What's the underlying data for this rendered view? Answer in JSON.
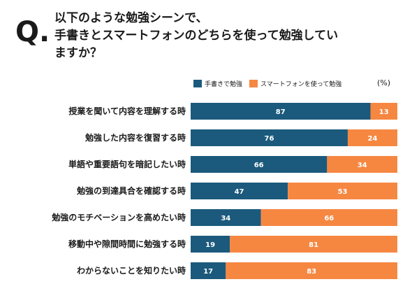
{
  "question": {
    "mark": "Q.",
    "lines": [
      "以下のような勉強シーンで、",
      "手書きとスマートフォンのどちらを使って勉強してい",
      "ますか？"
    ]
  },
  "legend": {
    "handwriting": "手書きで勉強",
    "smartphone": "スマートフォンを使って勉強"
  },
  "unit": "(%)",
  "colors": {
    "handwriting": "#1b5a7c",
    "smartphone": "#f68741"
  },
  "chart_data": {
    "type": "bar",
    "orientation": "horizontal-stacked",
    "xlim": [
      0,
      100
    ],
    "categories": [
      "授業を聞いて内容を理解する時",
      "勉強した内容を復習する時",
      "単語や重要語句を暗記したい時",
      "勉強の到達具合を確認する時",
      "勉強のモチベーションを高めたい時",
      "移動中や隙間時間に勉強する時",
      "わからないことを知りたい時"
    ],
    "series": [
      {
        "name": "手書きで勉強",
        "values": [
          87,
          76,
          66,
          47,
          34,
          19,
          17
        ]
      },
      {
        "name": "スマートフォンを使って勉強",
        "values": [
          13,
          24,
          34,
          53,
          66,
          81,
          83
        ]
      }
    ]
  }
}
